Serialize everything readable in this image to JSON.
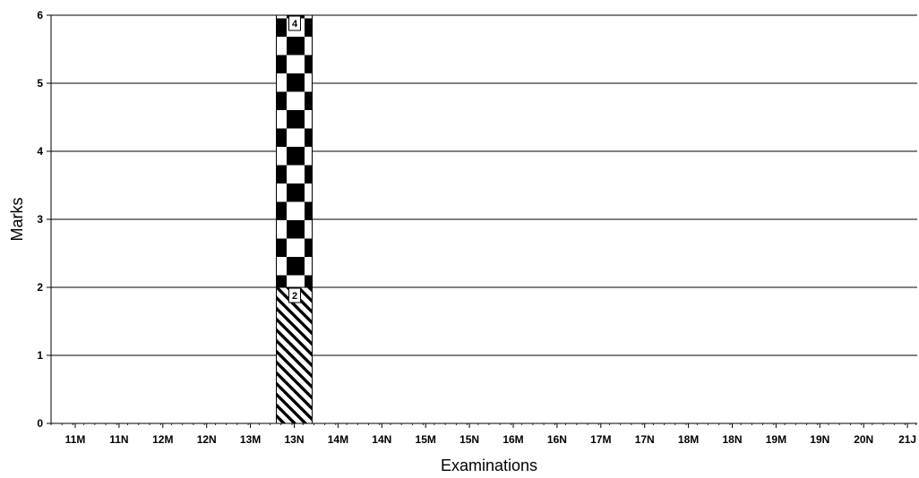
{
  "chart_data": {
    "type": "bar",
    "stacked": true,
    "title": "",
    "xlabel": "Examinations",
    "ylabel": "Marks",
    "ylim": [
      0,
      6
    ],
    "yticks": [
      0,
      1,
      2,
      3,
      4,
      5,
      6
    ],
    "grid": true,
    "categories": [
      "11M",
      "11N",
      "12M",
      "12N",
      "13M",
      "13N",
      "14M",
      "14N",
      "15M",
      "15N",
      "16M",
      "16N",
      "17M",
      "17N",
      "18M",
      "18N",
      "19M",
      "19N",
      "20N",
      "21J"
    ],
    "series": [
      {
        "pattern": "diagonal-stripes",
        "values": [
          0,
          0,
          0,
          0,
          0,
          2,
          0,
          0,
          0,
          0,
          0,
          0,
          0,
          0,
          0,
          0,
          0,
          0,
          0,
          0
        ],
        "data_labels": [
          "",
          "",
          "",
          "",
          "",
          "2",
          "",
          "",
          "",
          "",
          "",
          "",
          "",
          "",
          "",
          "",
          "",
          "",
          "",
          ""
        ]
      },
      {
        "pattern": "checkerboard",
        "values": [
          0,
          0,
          0,
          0,
          0,
          4,
          0,
          0,
          0,
          0,
          0,
          0,
          0,
          0,
          0,
          0,
          0,
          0,
          0,
          0
        ],
        "data_labels": [
          "",
          "",
          "",
          "",
          "",
          "4",
          "",
          "",
          "",
          "",
          "",
          "",
          "",
          "",
          "",
          "",
          "",
          "",
          "",
          ""
        ]
      }
    ],
    "colors": {
      "ink": "#000000",
      "background": "#ffffff"
    }
  }
}
